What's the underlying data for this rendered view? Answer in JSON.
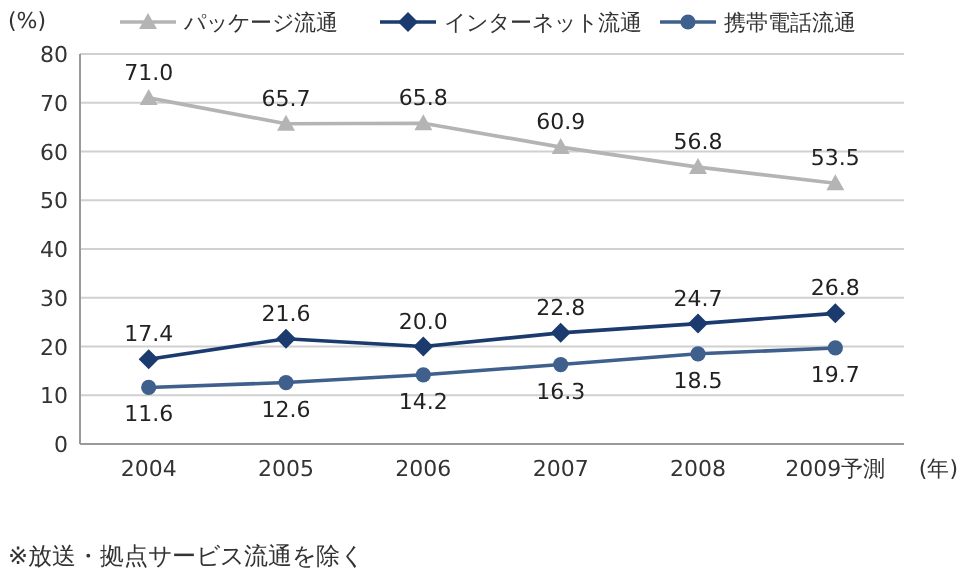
{
  "chart_data": {
    "type": "line",
    "ylabel": "(%)",
    "xlabel": "(年)",
    "categories": [
      "2004",
      "2005",
      "2006",
      "2007",
      "2008",
      "2009予測"
    ],
    "series": [
      {
        "name": "パッケージ流通",
        "color": "#b4b4b4",
        "marker": "triangle",
        "values": [
          71.0,
          65.7,
          65.8,
          60.9,
          56.8,
          53.5
        ],
        "value_labels": [
          "71.0",
          "65.7",
          "65.8",
          "60.9",
          "56.8",
          "53.5"
        ]
      },
      {
        "name": "インターネット流通",
        "color": "#1b3a6e",
        "marker": "diamond",
        "values": [
          17.4,
          21.6,
          20.0,
          22.8,
          24.7,
          26.8
        ],
        "value_labels": [
          "17.4",
          "21.6",
          "20.0",
          "22.8",
          "24.7",
          "26.8"
        ]
      },
      {
        "name": "携帯電話流通",
        "color": "#3f5f8c",
        "marker": "circle",
        "values": [
          11.6,
          12.6,
          14.2,
          16.3,
          18.5,
          19.7
        ],
        "value_labels": [
          "11.6",
          "12.6",
          "14.2",
          "16.3",
          "18.5",
          "19.7"
        ]
      }
    ],
    "ylim": [
      0,
      80
    ],
    "yticks": [
      0,
      10,
      20,
      30,
      40,
      50,
      60,
      70,
      80
    ],
    "grid": "y",
    "legend": "top",
    "annotations": [
      "※放送・拠点サービス流通を除く"
    ]
  }
}
